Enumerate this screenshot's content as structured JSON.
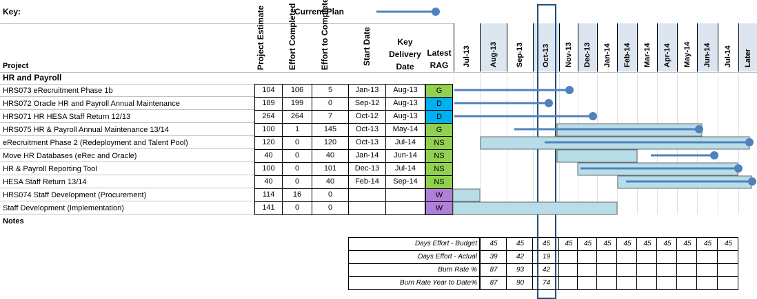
{
  "key": {
    "label": "Key:",
    "current_plan_label": "Current Plan"
  },
  "headers": {
    "project": "Project",
    "project_estimate": "Project Estimate",
    "effort_completed": "Effort Completed",
    "effort_to_complete": "Effort to Complete",
    "start_date": "Start Date",
    "key_delivery_1": "Key",
    "key_delivery_2": "Delivery",
    "key_delivery_3": "Date",
    "latest_rag_1": "Latest",
    "latest_rag_2": "RAG"
  },
  "months": [
    "Jul-13",
    "Aug-13",
    "Sep-13",
    "Oct-13",
    "Nov-13",
    "Dec-13",
    "Jan-14",
    "Feb-14",
    "Mar-14",
    "Apr-14",
    "May-14",
    "Jun-14",
    "Jul-14",
    "Later"
  ],
  "section_title": "HR and Payroll",
  "notes_label": "Notes",
  "projects": [
    {
      "name": "HRS073 eRecruitment Phase 1b",
      "estimate": "104",
      "completed": "106",
      "to_complete": "5",
      "start": "Jan-13",
      "delivery": "Aug-13",
      "rag": "G",
      "rag_color": "#92d050"
    },
    {
      "name": "HRS072 Oracle HR and Payroll Annual Maintenance",
      "estimate": "189",
      "completed": "199",
      "to_complete": "0",
      "start": "Sep-12",
      "delivery": "Aug-13",
      "rag": "D",
      "rag_color": "#00b0f0"
    },
    {
      "name": "HRS071 HR HESA Staff Return 12/13",
      "estimate": "264",
      "completed": "264",
      "to_complete": "7",
      "start": "Oct-12",
      "delivery": "Aug-13",
      "rag": "D",
      "rag_color": "#00b0f0"
    },
    {
      "name": "HRS075 HR & Payroll Annual Maintenance 13/14",
      "estimate": "100",
      "completed": "1",
      "to_complete": "145",
      "start": "Oct-13",
      "delivery": "May-14",
      "rag": "G",
      "rag_color": "#92d050"
    },
    {
      "name": "eRecruitment Phase 2 (Redeployment and Talent Pool)",
      "estimate": "120",
      "completed": "0",
      "to_complete": "120",
      "start": "Oct-13",
      "delivery": "Jul-14",
      "rag": "NS",
      "rag_color": "#92d050"
    },
    {
      "name": "Move HR Databases (eRec and Oracle)",
      "estimate": "40",
      "completed": "0",
      "to_complete": "40",
      "start": "Jan-14",
      "delivery": "Jun-14",
      "rag": "NS",
      "rag_color": "#92d050"
    },
    {
      "name": "HR & Payroll Reporting Tool",
      "estimate": "100",
      "completed": "0",
      "to_complete": "101",
      "start": "Dec-13",
      "delivery": "Jul-14",
      "rag": "NS",
      "rag_color": "#92d050"
    },
    {
      "name": "HESA Staff Return 13/14",
      "estimate": "40",
      "completed": "0",
      "to_complete": "40",
      "start": "Feb-14",
      "delivery": "Sep-14",
      "rag": "NS",
      "rag_color": "#92d050"
    },
    {
      "name": "HRS074 Staff Development (Procurement)",
      "estimate": "114",
      "completed": "16",
      "to_complete": "0",
      "start": "",
      "delivery": "",
      "rag": "W",
      "rag_color": "#b17ed8"
    },
    {
      "name": "Staff Development (Implementation)",
      "estimate": "141",
      "completed": "0",
      "to_complete": "0",
      "start": "",
      "delivery": "",
      "rag": "W",
      "rag_color": "#b17ed8"
    }
  ],
  "summary": {
    "labels": [
      "Days Effort - Budget",
      "Days Effort - Actual",
      "Burn Rate %",
      "Burn Rate Year to Date%"
    ],
    "values": [
      [
        "45",
        "45",
        "45",
        "45",
        "45",
        "45",
        "45",
        "45",
        "45",
        "45",
        "45",
        "45"
      ],
      [
        "39",
        "42",
        "19",
        "",
        "",
        "",
        "",
        "",
        "",
        "",
        "",
        ""
      ],
      [
        "87",
        "93",
        "42",
        "",
        "",
        "",
        "",
        "",
        "",
        "",
        "",
        ""
      ],
      [
        "87",
        "90",
        "74",
        "",
        "",
        "",
        "",
        "",
        "",
        "",
        "",
        ""
      ]
    ]
  },
  "colors": {
    "plan_line": "#4f81bd",
    "bar_fill": "#b7dde8",
    "header_bg": "#dce6f1"
  }
}
